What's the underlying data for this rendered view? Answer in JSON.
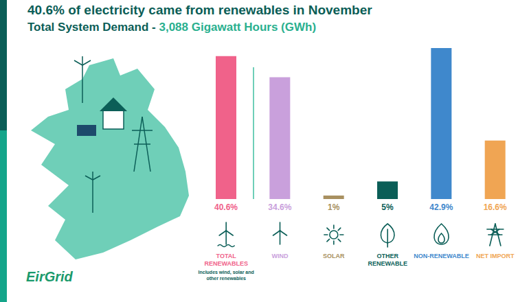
{
  "chart_data": {
    "type": "bar",
    "title": "40.6% of electricity came from renewables in November",
    "subtitle": "Total System Demand - 3,088 Gigawatt Hours (GWh)",
    "categories": [
      "TOTAL RENEWABLES",
      "WIND",
      "SOLAR",
      "OTHER RENEWABLE",
      "NON-RENEWABLE",
      "NET IMPORT"
    ],
    "values": [
      40.6,
      34.6,
      1,
      5,
      42.9,
      16.6
    ],
    "value_labels": [
      "40.6%",
      "34.6%",
      "1%",
      "5%",
      "42.9%",
      "16.6%"
    ],
    "colors": [
      "#f0628a",
      "#c9a0dc",
      "#a89060",
      "#0b5e57",
      "#3f88cc",
      "#f0a553"
    ],
    "data_labels": true,
    "tick_labels": "x",
    "grid": false,
    "annotations": [
      {
        "category": "TOTAL RENEWABLES",
        "text": "Includes wind, solar and other renewables"
      }
    ],
    "logo": "EirGrid"
  }
}
